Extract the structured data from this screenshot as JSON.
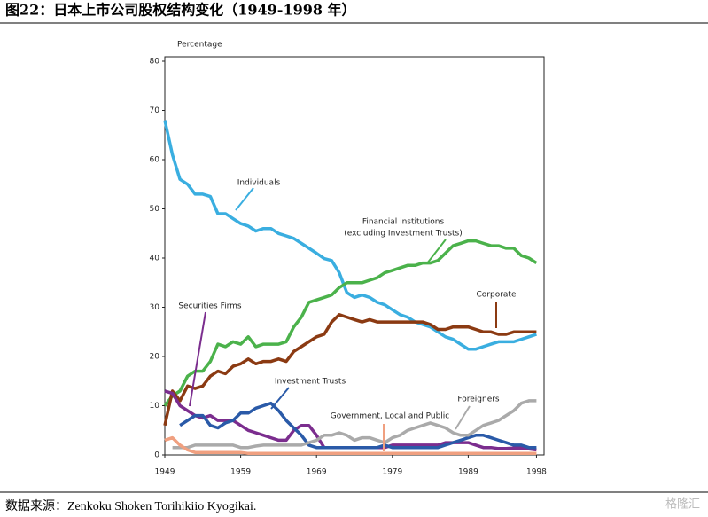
{
  "heading": "图22：日本上市公司股权结构变化（1949-1998 年）",
  "source": "数据来源：Zenkoku Shoken Torihikiio Kyogikai.",
  "watermark": "格隆汇",
  "chart_data": {
    "type": "line",
    "y_label": "Percentage",
    "x": [
      1949,
      1950,
      1951,
      1952,
      1953,
      1954,
      1955,
      1956,
      1957,
      1958,
      1959,
      1960,
      1961,
      1962,
      1963,
      1964,
      1965,
      1966,
      1967,
      1968,
      1969,
      1970,
      1971,
      1972,
      1973,
      1974,
      1975,
      1976,
      1977,
      1978,
      1979,
      1980,
      1981,
      1982,
      1983,
      1984,
      1985,
      1986,
      1987,
      1988,
      1989,
      1990,
      1991,
      1992,
      1993,
      1994,
      1995,
      1996,
      1997,
      1998
    ],
    "xlim": [
      1949,
      1999
    ],
    "xticks": [
      1949,
      1959,
      1969,
      1979,
      1989,
      1998
    ],
    "ylim": [
      0,
      80
    ],
    "yticks": [
      0,
      10,
      20,
      30,
      40,
      50,
      60,
      70,
      80
    ],
    "series": [
      {
        "name": "Individuals",
        "color": "#3aaee0",
        "values": [
          68,
          61,
          56,
          55,
          53,
          53,
          52.5,
          49,
          49,
          48,
          47,
          46.5,
          45.5,
          46,
          46,
          45,
          44.5,
          44,
          43,
          42,
          41,
          39.9,
          39.5,
          37,
          33,
          32,
          32.5,
          32,
          31,
          30.5,
          29.5,
          28.5,
          28,
          27,
          26.5,
          26,
          25,
          24,
          23.5,
          22.5,
          21.5,
          21.5,
          22,
          22.5,
          23,
          23,
          23,
          23.5,
          24,
          24.5
        ]
      },
      {
        "name": [
          "Financial institutions",
          "(excluding Investment Trusts)"
        ],
        "color": "#4bb24b",
        "values": [
          10,
          12,
          13,
          16,
          17,
          17,
          19,
          22.5,
          22,
          23,
          22.5,
          24,
          22,
          22.5,
          22.5,
          22.5,
          23,
          26,
          28,
          31,
          31.5,
          32,
          32.5,
          34,
          35,
          35,
          35,
          35.5,
          36,
          37,
          37.5,
          38,
          38.5,
          38.5,
          39,
          39,
          39.5,
          41,
          42.5,
          43,
          43.5,
          43.5,
          43,
          42.5,
          42.5,
          42,
          42,
          40.5,
          40,
          39
        ]
      },
      {
        "name": "Corporate",
        "color": "#8b3a12",
        "values": [
          6,
          13,
          11,
          14,
          13.5,
          14,
          16,
          17,
          16.5,
          18,
          18.5,
          19.5,
          18.5,
          19,
          19,
          19.5,
          19,
          21,
          22,
          23,
          24,
          24.5,
          27,
          28.5,
          28,
          27.5,
          27,
          27.5,
          27,
          27,
          27,
          27,
          27,
          27,
          27,
          26.5,
          25.5,
          25.5,
          26,
          26,
          26,
          25.5,
          25,
          25,
          24.5,
          24.5,
          25,
          25,
          25,
          25
        ]
      },
      {
        "name": "Securities Firms",
        "color": "#7b2d8e",
        "values": [
          13,
          12.5,
          10,
          9,
          8,
          7.5,
          8,
          7,
          7,
          7,
          6,
          5,
          4.5,
          4,
          3.5,
          3,
          3,
          5,
          6,
          6,
          4,
          1.5,
          1.5,
          1.5,
          1.5,
          1.5,
          1.5,
          1.5,
          1.5,
          1.5,
          2,
          2,
          2,
          2,
          2,
          2,
          2,
          2.5,
          2.5,
          2.5,
          2.5,
          2,
          1.5,
          1.5,
          1.3,
          1.3,
          1.4,
          1.4,
          1.2,
          1
        ]
      },
      {
        "name": "Investment Trusts",
        "color": "#2a5aa8",
        "values": [
          null,
          null,
          6,
          7,
          8,
          8,
          6,
          5.5,
          6.5,
          7,
          8.5,
          8.5,
          9.5,
          10,
          10.5,
          9,
          7,
          5.5,
          4,
          2,
          1.5,
          1.5,
          1.5,
          1.5,
          1.5,
          1.5,
          1.5,
          1.5,
          1.5,
          2,
          1.5,
          1.5,
          1.5,
          1.5,
          1.5,
          1.5,
          1.5,
          2,
          2.5,
          3,
          3.5,
          4,
          4,
          3.5,
          3,
          2.5,
          2,
          2,
          1.5,
          1.5
        ]
      },
      {
        "name": "Foreigners",
        "color": "#aaaaaa",
        "values": [
          null,
          1.5,
          1.5,
          1.5,
          2,
          2,
          2,
          2,
          2,
          2,
          1.5,
          1.5,
          1.8,
          2,
          2,
          2,
          2,
          2,
          2,
          2.5,
          3,
          4,
          4,
          4.5,
          4,
          3,
          3.5,
          3.5,
          3,
          2.5,
          3.5,
          4,
          5,
          5.5,
          6,
          6.5,
          6,
          5.5,
          4.5,
          4,
          4,
          5,
          6,
          6.5,
          7,
          8,
          9,
          10.5,
          11,
          11
        ]
      },
      {
        "name": "Government, Local and Public",
        "color": "#f0a080",
        "values": [
          3,
          3.5,
          2,
          1,
          0.5,
          0.5,
          0.5,
          0.5,
          0.5,
          0.5,
          0.5,
          0.3,
          0.3,
          0.3,
          0.3,
          0.3,
          0.3,
          0.3,
          0.3,
          0.3,
          0.3,
          0.3,
          0.3,
          0.3,
          0.3,
          0.3,
          0.3,
          0.3,
          0.3,
          0.3,
          0.3,
          0.3,
          0.3,
          0.3,
          0.3,
          0.3,
          0.3,
          0.3,
          0.3,
          0.3,
          0.3,
          0.3,
          0.3,
          0.3,
          0.3,
          0.3,
          0.3,
          0.3,
          0.3,
          0.3
        ]
      }
    ]
  }
}
